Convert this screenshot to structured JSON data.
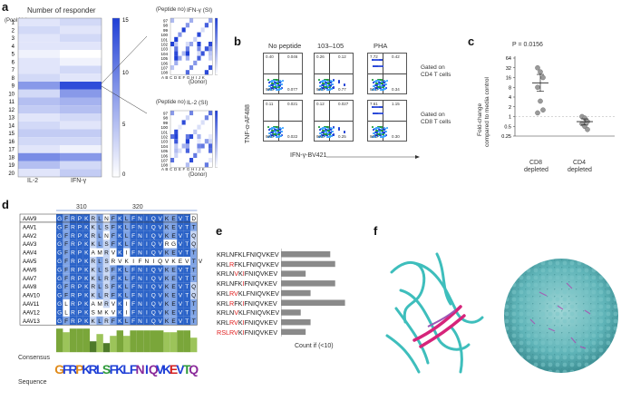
{
  "panel_letters": {
    "a": "a",
    "b": "b",
    "c": "c",
    "d": "d",
    "e": "e",
    "f": "f"
  },
  "panel_a": {
    "title": "Number of responder",
    "pool_label": "(Pool No)",
    "pools": [
      "1",
      "2",
      "3",
      "4",
      "5",
      "6",
      "7",
      "8",
      "9",
      "10",
      "11",
      "12",
      "13",
      "14",
      "15",
      "16",
      "17",
      "18",
      "19",
      "20"
    ],
    "columns": [
      "IL-2",
      "IFN-γ"
    ],
    "colorbar_ticks": [
      "15",
      "10",
      "5",
      "0"
    ],
    "il2_values": [
      2,
      3,
      2,
      2,
      1,
      2,
      2,
      3,
      8,
      3,
      5,
      4,
      2,
      3,
      4,
      3,
      2,
      9,
      5,
      2
    ],
    "ifn_values": [
      3,
      2,
      3,
      2,
      0,
      1,
      3,
      2,
      14,
      8,
      6,
      5,
      3,
      2,
      4,
      3,
      1,
      8,
      3,
      4
    ],
    "insets": [
      {
        "title": "IFN-γ (SI)",
        "peptide_label": "(Peptide no)",
        "donor_label": "(Donor)",
        "peptides": [
          "97",
          "98",
          "99",
          "100",
          "101",
          "102",
          "103",
          "104",
          "105",
          "106",
          "107",
          "108"
        ],
        "colorbar_ticks": [
          "8",
          "6",
          "4",
          "2"
        ]
      },
      {
        "title": "IL-2 (SI)",
        "peptide_label": "(Peptide no)",
        "donor_label": "(Donor)",
        "peptides": [
          "97",
          "98",
          "99",
          "100",
          "101",
          "102",
          "103",
          "104",
          "105",
          "106",
          "107",
          "108"
        ],
        "colorbar_ticks": [
          "20",
          "15",
          "10",
          "5"
        ]
      }
    ],
    "donor_ticks": "A B C D E F G H I J K"
  },
  "panel_b": {
    "columns": [
      "No peptide",
      "103–105",
      "PHA"
    ],
    "row_labels": [
      "Gated on\nCD4 T cells",
      "Gated on\nCD8 T cells"
    ],
    "row_label_lines": [
      [
        "Gated on",
        "CD4 T cells"
      ],
      [
        "Gated on",
        "CD8 T cells"
      ]
    ],
    "ylabel": "TNF-α-AF488",
    "xlabel": "IFN-γ-BV421",
    "quadrants": [
      [
        [
          "0.40",
          "0.046",
          "99.5",
          "0.077"
        ],
        [
          "0.26",
          "0.12",
          "98.9",
          "0.77"
        ],
        [
          "7.72",
          "0.42",
          "91.5",
          "0.34"
        ]
      ],
      [
        [
          "0.11",
          "0.021",
          "99.9",
          "0.022"
        ],
        [
          "0.12",
          "0.027",
          "99.6",
          "0.25"
        ],
        [
          "7.61",
          "1.15",
          "90.9",
          "0.30"
        ]
      ]
    ]
  },
  "panel_c": {
    "pvalue": "P = 0.0156",
    "ylabel_lines": [
      "Fold-change",
      "compared to media control"
    ],
    "yticks": [
      "64",
      "32",
      "16",
      "8",
      "4",
      "2",
      "1",
      "0.5",
      "0.25"
    ],
    "groups": [
      {
        "line1": "CD8",
        "line2": "depleted"
      },
      {
        "line1": "CD4",
        "line2": "depleted"
      }
    ],
    "chart_data": {
      "type": "scatter",
      "yscale": "log2",
      "ylim": [
        0.25,
        64
      ],
      "ylabel": "Fold-change compared to media control",
      "categories": [
        "CD8 depleted",
        "CD4 depleted"
      ],
      "series": [
        {
          "name": "CD8 depleted",
          "values": [
            32,
            24,
            16,
            8,
            3,
            1.6,
            1.3
          ],
          "mean": 11,
          "sem_low": 6,
          "sem_high": 20
        },
        {
          "name": "CD4 depleted",
          "values": [
            1.0,
            0.9,
            0.7,
            0.6,
            0.5,
            0.4
          ],
          "mean": 0.7,
          "sem_low": 0.55,
          "sem_high": 0.85
        }
      ],
      "annotation": "P = 0.0156"
    }
  },
  "panel_d": {
    "ruler": [
      "310",
      "320"
    ],
    "rows": [
      {
        "name": "AAV9",
        "seq": "GFRPKRLNFKLFNIQVKEVTD"
      },
      {
        "name": "AAV1",
        "seq": "GFRPKKLSFKLFNIQVKEVTT"
      },
      {
        "name": "AAV2",
        "seq": "GFRPKRLNFKLFNIQVKEVTQ"
      },
      {
        "name": "AAV3",
        "seq": "GFRPKKLSFKLFNIQVRGVTQ"
      },
      {
        "name": "AAV4",
        "seq": "GFRPKAMRVKIFNIQVKEVTT"
      },
      {
        "name": "AAV5",
        "seq": "GFRPKRLSRVKIFNIQVKEVTV"
      },
      {
        "name": "AAV6",
        "seq": "GFRPKKLSFKLFNIQVKEVTT"
      },
      {
        "name": "AAV7",
        "seq": "GFRPKKLRFKLFNIQVKEVTT"
      },
      {
        "name": "AAV8",
        "seq": "GFRPKRLSFKLFNIQVKEVTQ"
      },
      {
        "name": "AAV10",
        "seq": "GFRPKKLRFKLFNIQVKEVTQ"
      },
      {
        "name": "AAV11",
        "seq": "GLRPKAMRVKIFNIQVKEVTT"
      },
      {
        "name": "AAV12",
        "seq": "GLRPKSMKVKIFNIQVKEVTT"
      },
      {
        "name": "AAV13",
        "seq": "GFRPKKLRFKLFNIQVKEVTT"
      }
    ],
    "consensus_label": "Consensus",
    "sequence_label": "Sequence",
    "logo": "GFRPKRLSFKLFNIQVKEVTQ"
  },
  "panel_e": {
    "xlabel": "Count if (<10)",
    "chart_data": {
      "type": "bar",
      "orientation": "horizontal",
      "categories": [
        "KRLNFKLFNIQVKEV",
        "KRLRFKLFNIQVKEV",
        "KRLNVKIFNIQVKEV",
        "KRLNFKIFNIQVKEV",
        "KRLRVKLFNIQVKEV",
        "KRLRFKIFNIQVKEV",
        "KRLNVKLFNIQVKEV",
        "KRLRVKIFNIQVKEV",
        "RSLRVKIFNIQVKEV"
      ],
      "values": [
        10,
        11,
        5,
        11,
        6,
        13,
        4,
        6,
        5
      ],
      "xlabel": "Count if (<10)"
    },
    "peptides": [
      {
        "a": "KRL",
        "b": "N",
        "c": "F",
        "d": "KLFNIQVKEV"
      },
      {
        "a": "KRL",
        "b": "R",
        "c": "F",
        "d": "KLFNIQVKEV"
      },
      {
        "a": "KRL",
        "b": "N",
        "c": "V",
        "d": "KIFNIQVKEV"
      },
      {
        "a": "KRL",
        "b": "N",
        "c": "F",
        "d": "KIFNIQVKEV"
      },
      {
        "a": "KRL",
        "b": "R",
        "c": "V",
        "d": "KLFNIQVKEV"
      },
      {
        "a": "KRL",
        "b": "R",
        "c": "F",
        "d": "KIFNIQVKEV"
      },
      {
        "a": "KRL",
        "b": "N",
        "c": "V",
        "d": "KLFNIQVKEV"
      },
      {
        "a": "KRL",
        "b": "R",
        "c": "V",
        "d": "KIFNIQVKEV"
      },
      {
        "a": "RSL",
        "b": "R",
        "c": "V",
        "d": "KIFNIQVKEV"
      }
    ]
  },
  "colors": {
    "accent": "#1f3fd6",
    "mid": "#8a9ef0",
    "light": "#e8ecfb",
    "red": "#e01c1c",
    "teal": "#2ab7b5",
    "magenta": "#d6247a",
    "green": "#6fa332"
  }
}
